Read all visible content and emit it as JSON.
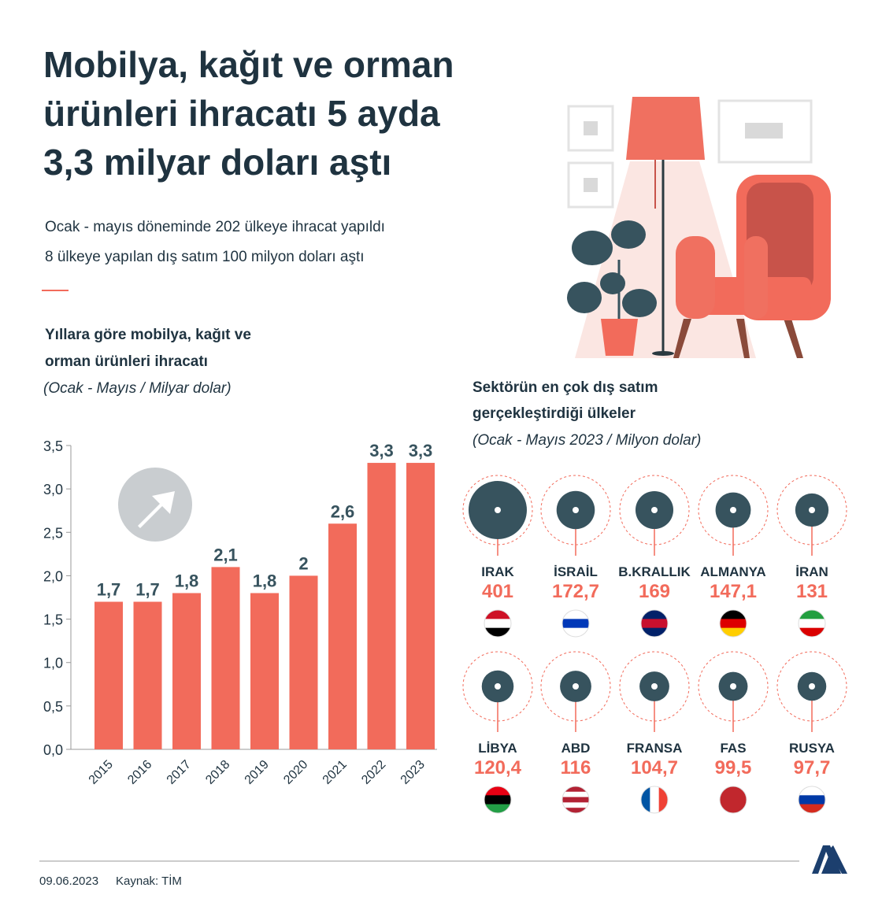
{
  "title": [
    "Mobilya, kağıt ve orman",
    "ürünleri ihracatı 5 ayda",
    "3,3 milyar doları aştı"
  ],
  "subtitles": [
    "Ocak - mayıs döneminde 202 ülkeye ihracat yapıldı",
    "8 ülkeye yapılan dış satım 100 milyon doları aştı"
  ],
  "chart_data": [
    {
      "type": "bar",
      "title": [
        "Yıllara göre mobilya, kağıt ve",
        "orman ürünleri ihracatı"
      ],
      "subtitle": "(Ocak - Mayıs / Milyar dolar)",
      "categories": [
        "2015",
        "2016",
        "2017",
        "2018",
        "2019",
        "2020",
        "2021",
        "2022",
        "2023"
      ],
      "values": [
        1.7,
        1.7,
        1.8,
        2.1,
        1.8,
        2,
        2.6,
        3.3,
        3.3
      ],
      "value_labels": [
        "1,7",
        "1,7",
        "1,8",
        "2,1",
        "1,8",
        "2",
        "2,6",
        "3,3",
        "3,3"
      ],
      "color": "#f26b5b",
      "ylim": [
        0,
        3.5
      ],
      "yticks": [
        {
          "value": 0,
          "label": "0,0"
        },
        {
          "value": 0.5,
          "label": "0,5"
        },
        {
          "value": 1,
          "label": "1,0"
        },
        {
          "value": 1.5,
          "label": "1,5"
        },
        {
          "value": 2,
          "label": "2,0"
        },
        {
          "value": 2.5,
          "label": "2,5"
        },
        {
          "value": 3,
          "label": "3,0"
        },
        {
          "value": 3.5,
          "label": "3,5"
        }
      ]
    },
    {
      "type": "bubble",
      "title": [
        "Sektörün en çok dış satım",
        "gerçekleştirdiği ülkeler"
      ],
      "subtitle": "(Ocak - Mayıs 2023 / Milyon dolar)",
      "categories": [
        "IRAK",
        "İSRAİL",
        "B.KRALLIK",
        "ALMANYA",
        "İRAN",
        "LİBYA",
        "ABD",
        "FRANSA",
        "FAS",
        "RUSYA"
      ],
      "values": [
        401,
        172.7,
        169,
        147.1,
        131,
        120.4,
        116,
        104.7,
        99.5,
        97.7
      ],
      "value_labels": [
        "401",
        "172,7",
        "169",
        "147,1",
        "131",
        "120,4",
        "116",
        "104,7",
        "99,5",
        "97,7"
      ],
      "color": "#37535e"
    }
  ],
  "footer": {
    "date": "09.06.2023",
    "source": "Kaynak: TİM"
  }
}
